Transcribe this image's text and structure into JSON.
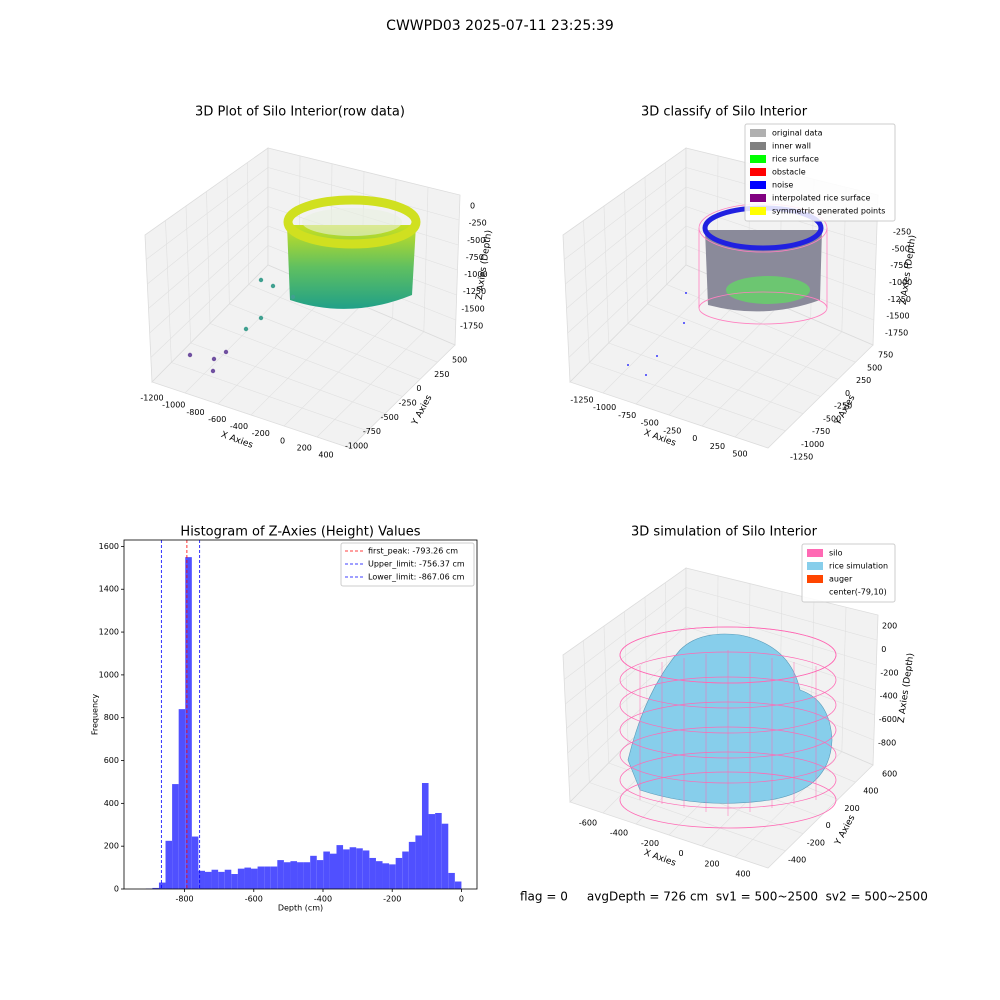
{
  "title": "CWWPD03 2025-07-11 23:25:39",
  "chart_data": [
    {
      "type": "scatter3d",
      "title": "3D Plot of Silo Interior(row data)",
      "xlabel": "X Axies",
      "ylabel": "Y Axies",
      "zlabel": "Z Axies (Depth)",
      "xticks": [
        -1200,
        -1000,
        -800,
        -600,
        -400,
        -200,
        0,
        200,
        400
      ],
      "yticks": [
        -1000,
        -750,
        -500,
        -250,
        0,
        250,
        500
      ],
      "zticks": [
        0,
        -250,
        -500,
        -750,
        -1000,
        -1250,
        -1500,
        -1750
      ]
    },
    {
      "type": "scatter3d",
      "title": "3D classify of Silo Interior",
      "xlabel": "X Axies",
      "ylabel": "Y Axies",
      "zlabel": "Z Axies (Depth)",
      "xticks": [
        -1250,
        -1000,
        -750,
        -500,
        -250,
        0,
        250,
        500
      ],
      "yticks": [
        -1250,
        -1000,
        -750,
        -500,
        -250,
        0,
        250,
        500,
        750
      ],
      "zticks": [
        -250,
        -500,
        -750,
        -1000,
        -1250,
        -1500,
        -1750
      ],
      "legend": [
        {
          "name": "original data",
          "color": "#b0b0b0"
        },
        {
          "name": "inner wall",
          "color": "#808080"
        },
        {
          "name": "rice surface",
          "color": "#00ff00"
        },
        {
          "name": "obstacle",
          "color": "#ff0000"
        },
        {
          "name": "noise",
          "color": "#0000ff"
        },
        {
          "name": "interpolated rice surface",
          "color": "#800080"
        },
        {
          "name": "symmetric generated points",
          "color": "#ffff00"
        }
      ]
    },
    {
      "type": "histogram",
      "title": "Histogram of Z-Axies (Height) Values",
      "xlabel": "Depth (cm)",
      "ylabel": "Frequency",
      "color": "#5050ff",
      "bins": [
        -950,
        -931,
        -912,
        -893,
        -874,
        -855,
        -836,
        -817,
        -798,
        -779,
        -760,
        -741,
        -722,
        -703,
        -684,
        -665,
        -646,
        -627,
        -608,
        -589,
        -570,
        -551,
        -532,
        -513,
        -494,
        -475,
        -456,
        -437,
        -418,
        -399,
        -380,
        -361,
        -342,
        -323,
        -304,
        -285,
        -266,
        -247,
        -228,
        -209,
        -190,
        -171,
        -152,
        -133,
        -114,
        -95,
        -76,
        -57,
        -38,
        -19,
        0
      ],
      "counts": [
        0,
        0,
        2,
        5,
        30,
        225,
        490,
        840,
        1550,
        245,
        85,
        80,
        90,
        80,
        90,
        70,
        95,
        100,
        95,
        105,
        105,
        105,
        135,
        125,
        130,
        125,
        125,
        155,
        135,
        175,
        165,
        205,
        185,
        195,
        190,
        180,
        145,
        130,
        120,
        115,
        145,
        175,
        220,
        250,
        495,
        350,
        355,
        305,
        75,
        35
      ],
      "xlim": [
        -975,
        45
      ],
      "ylim": [
        0,
        1630
      ],
      "xticks": [
        -800,
        -600,
        -400,
        -200,
        0
      ],
      "yticks": [
        0,
        200,
        400,
        600,
        800,
        1000,
        1200,
        1400,
        1600
      ],
      "lines": [
        {
          "name": "first_peak",
          "value": -793.26,
          "label": "first_peak: -793.26 cm",
          "color": "#ff0000"
        },
        {
          "name": "Upper_limit",
          "value": -756.37,
          "label": "Upper_limit: -756.37 cm",
          "color": "#0000ff"
        },
        {
          "name": "Lower_limit",
          "value": -867.06,
          "label": "Lower_limit: -867.06 cm",
          "color": "#0000ff"
        }
      ]
    },
    {
      "type": "surface3d",
      "title": "3D simulation of Silo Interior",
      "xlabel": "X Axies",
      "ylabel": "Y Axies",
      "zlabel": "Z Axies (Depth)",
      "xticks": [
        -600,
        -400,
        -200,
        0,
        200,
        400
      ],
      "yticks": [
        -400,
        -200,
        0,
        200,
        400,
        600
      ],
      "zticks": [
        200,
        0,
        -200,
        -400,
        -600,
        -800
      ],
      "legend": [
        {
          "name": "silo",
          "color": "#ff69b4"
        },
        {
          "name": "rice simulation",
          "color": "#87ceeb"
        },
        {
          "name": "auger",
          "color": "#ff4500"
        },
        {
          "name": "center(-79,10)",
          "color": "#ffffff"
        }
      ]
    }
  ],
  "footer": "flag = 0     avgDepth = 726 cm  sv1 = 500~2500  sv2 = 500~2500"
}
